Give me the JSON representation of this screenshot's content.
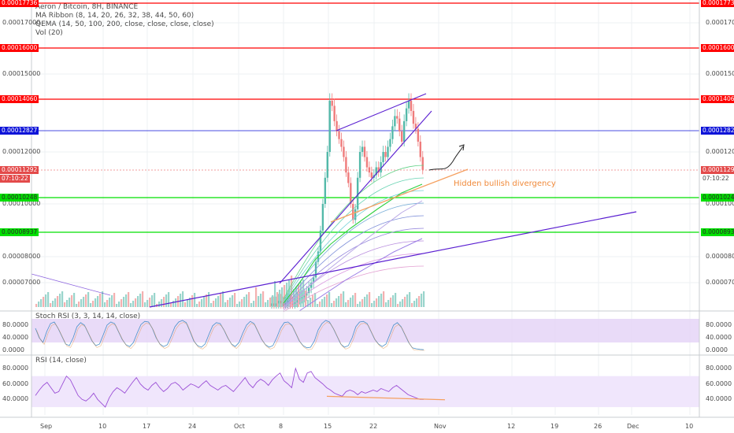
{
  "legend": {
    "title": "Aeron / Bitcoin, 8H, BINANCE",
    "ma_ribbon": "MA Ribbon (8, 14, 20, 26, 32, 38, 44, 50, 60)",
    "qema": "QEMA (14, 50, 100, 200, close, close, close, close)",
    "vol": "Vol (20)"
  },
  "stoch_label": "Stoch RSI (3, 3, 14, 14, close)",
  "rsi_label": "RSI (14, close)",
  "annotation": "Hidden bullish divergency",
  "countdown": "07:10:22",
  "colors": {
    "up": "#53b9a9",
    "down": "#ef7b7b",
    "resistance": "#ff0000",
    "support": "#00e000",
    "trendline": "#5a1fd1",
    "divergence": "#f5a060",
    "current": "#e34a4a",
    "blue_tag": "#0d13d8"
  },
  "chart_data": {
    "type": "candlestick",
    "symbol": "Aeron / Bitcoin",
    "interval": "8H",
    "exchange": "BINANCE",
    "price_axis_ticks": [
      "0.00017000",
      "0.00015000",
      "0.00012000",
      "0.00010000",
      "0.00008000",
      "0.00007000"
    ],
    "date_ticks": [
      "Sep",
      "10",
      "17",
      "24",
      "Oct",
      "8",
      "15",
      "22",
      "Nov",
      "12",
      "19",
      "26",
      "Dec",
      "10"
    ],
    "horizontal_levels": [
      {
        "value": 0.00017736,
        "label": "0.00017736",
        "color": "resistance"
      },
      {
        "value": 0.00016,
        "label": "0.00016000",
        "color": "resistance"
      },
      {
        "value": 0.0001406,
        "label": "0.00014060",
        "color": "resistance"
      },
      {
        "value": 0.00012827,
        "label": "0.00012827",
        "color": "blue_tag"
      },
      {
        "value": 0.00011292,
        "label": "0.00011292",
        "color": "current"
      },
      {
        "value": 0.00010248,
        "label": "0.00010248",
        "color": "support"
      },
      {
        "value": 8.937e-05,
        "label": "0.00008937",
        "color": "support"
      }
    ],
    "stoch_rsi": {
      "ticks": [
        "80.0000",
        "40.0000",
        "0.0000"
      ],
      "band": [
        20,
        80
      ],
      "values": [
        70,
        40,
        25,
        60,
        85,
        90,
        70,
        45,
        20,
        15,
        40,
        75,
        88,
        80,
        55,
        30,
        15,
        20,
        50,
        80,
        90,
        85,
        60,
        35,
        18,
        12,
        25,
        55,
        82,
        92,
        90,
        70,
        40,
        20,
        12,
        18,
        45,
        75,
        90,
        95,
        88,
        60,
        30,
        15,
        10,
        20,
        50,
        78,
        88,
        85,
        65,
        40,
        20,
        12,
        25,
        55,
        80,
        92,
        85,
        60,
        35,
        18,
        10,
        15,
        40,
        70,
        88,
        90,
        80,
        55,
        30,
        15,
        8,
        10,
        30,
        65,
        85,
        95,
        90,
        70,
        45,
        20,
        10,
        15,
        40,
        75,
        90,
        92,
        85,
        60,
        35,
        20,
        12,
        20,
        50,
        80,
        88,
        75,
        50,
        25,
        8,
        5,
        3,
        2
      ]
    },
    "rsi": {
      "ticks": [
        "80.0000",
        "60.0000",
        "40.0000"
      ],
      "band": [
        30,
        70
      ],
      "values": [
        45,
        52,
        58,
        62,
        55,
        48,
        50,
        60,
        70,
        65,
        55,
        45,
        40,
        38,
        42,
        48,
        40,
        35,
        30,
        42,
        50,
        55,
        52,
        48,
        55,
        62,
        68,
        60,
        55,
        52,
        58,
        62,
        55,
        50,
        54,
        60,
        62,
        58,
        52,
        56,
        60,
        58,
        55,
        60,
        64,
        58,
        55,
        52,
        56,
        58,
        54,
        50,
        56,
        62,
        68,
        60,
        55,
        62,
        66,
        63,
        58,
        65,
        70,
        74,
        64,
        60,
        55,
        80,
        66,
        62,
        74,
        76,
        68,
        64,
        60,
        55,
        52,
        48,
        46,
        44,
        50,
        52,
        50,
        46,
        50,
        48,
        50,
        52,
        50,
        54,
        52,
        50,
        55,
        58,
        54,
        50,
        46,
        44,
        42,
        40,
        40
      ],
      "divergence_line": "hidden bullish"
    }
  }
}
